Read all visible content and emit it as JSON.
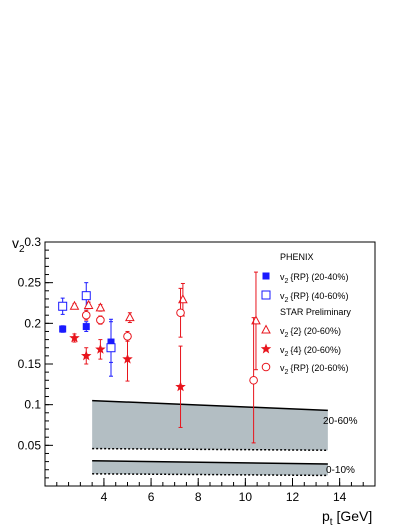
{
  "chart_data": {
    "type": "scatter",
    "xlabel_main": "p",
    "xlabel_sub": "t",
    "xlabel_unit": " [GeV]",
    "ylabel_main": "v",
    "ylabel_sub": "2",
    "xlim": [
      1.5,
      15.5
    ],
    "ylim": [
      0,
      0.3
    ],
    "x_ticks": [
      {
        "value": 4,
        "label": "4"
      },
      {
        "value": 6,
        "label": "6"
      },
      {
        "value": 8,
        "label": "8"
      },
      {
        "value": 10,
        "label": "10"
      },
      {
        "value": 12,
        "label": "12"
      },
      {
        "value": 14,
        "label": "14"
      }
    ],
    "y_ticks": [
      {
        "value": 0.05,
        "label": "0.05"
      },
      {
        "value": 0.1,
        "label": "0.1"
      },
      {
        "value": 0.15,
        "label": "0.15"
      },
      {
        "value": 0.2,
        "label": "0.2"
      },
      {
        "value": 0.25,
        "label": "0.25"
      },
      {
        "value": 0.3,
        "label": "0.3"
      }
    ],
    "legend_groups": [
      {
        "title": "PHENIX"
      },
      {
        "title": "STAR Preliminary"
      }
    ],
    "series": [
      {
        "id": "phenix_20_40",
        "group": 0,
        "label_main": "v",
        "label_sub": "2",
        "label_rest": "{RP} (20-40%)",
        "marker": "filled-square",
        "color": "#1a1aff",
        "points": [
          {
            "x": 2.25,
            "y": 0.193,
            "err": 0.004
          },
          {
            "x": 3.25,
            "y": 0.196,
            "err": 0.006
          },
          {
            "x": 4.3,
            "y": 0.177,
            "err": 0.025
          }
        ]
      },
      {
        "id": "phenix_40_60",
        "group": 0,
        "label_main": "v",
        "label_sub": "2",
        "label_rest": "{RP} (40-60%)",
        "marker": "open-square",
        "color": "#1a1aff",
        "points": [
          {
            "x": 2.25,
            "y": 0.221,
            "err": 0.01
          },
          {
            "x": 3.25,
            "y": 0.234,
            "err": 0.016
          },
          {
            "x": 4.3,
            "y": 0.17,
            "err": 0.035
          }
        ]
      },
      {
        "id": "star_v2_2",
        "group": 1,
        "label_main": "v",
        "label_sub": "2",
        "label_rest": "{2}    (20-60%)",
        "marker": "open-triangle",
        "color": "#e8141c",
        "points": [
          {
            "x": 2.75,
            "y": 0.221,
            "err": 0.003
          },
          {
            "x": 3.35,
            "y": 0.222,
            "err": 0.004
          },
          {
            "x": 3.85,
            "y": 0.219,
            "err": 0.004
          },
          {
            "x": 5.1,
            "y": 0.207,
            "err": 0.006
          },
          {
            "x": 7.35,
            "y": 0.229,
            "err": 0.02
          },
          {
            "x": 10.45,
            "y": 0.203,
            "err": 0.06
          }
        ]
      },
      {
        "id": "star_v2_4",
        "group": 1,
        "label_main": "v",
        "label_sub": "2",
        "label_rest": "{4}    (20-60%)",
        "marker": "filled-star",
        "color": "#e8141c",
        "points": [
          {
            "x": 2.75,
            "y": 0.182,
            "err": 0.005
          },
          {
            "x": 3.25,
            "y": 0.16,
            "err": 0.01
          },
          {
            "x": 3.85,
            "y": 0.168,
            "err": 0.012
          },
          {
            "x": 5.0,
            "y": 0.156,
            "err": 0.027
          },
          {
            "x": 7.25,
            "y": 0.122,
            "err": 0.05
          }
        ]
      },
      {
        "id": "star_rp",
        "group": 1,
        "label_main": "v",
        "label_sub": "2",
        "label_rest": "{RP} (20-60%)",
        "marker": "open-circle",
        "color": "#e8141c",
        "points": [
          {
            "x": 3.25,
            "y": 0.21,
            "err": 0.006
          },
          {
            "x": 3.85,
            "y": 0.204,
            "err": 0.005
          },
          {
            "x": 5.0,
            "y": 0.184,
            "err": 0.006
          },
          {
            "x": 7.25,
            "y": 0.213,
            "err": 0.03
          },
          {
            "x": 10.35,
            "y": 0.13,
            "err": 0.077
          }
        ]
      }
    ],
    "bands": [
      {
        "label": "20-60%",
        "x": [
          3.5,
          13.5
        ],
        "upper": [
          0.105,
          0.093
        ],
        "lower": [
          0.046,
          0.044
        ],
        "fill": "#b3bec3"
      },
      {
        "label": "0-10%",
        "x": [
          3.5,
          13.5
        ],
        "upper": [
          0.031,
          0.027
        ],
        "lower": [
          0.015,
          0.013
        ],
        "fill": "#b3bec3"
      }
    ]
  }
}
